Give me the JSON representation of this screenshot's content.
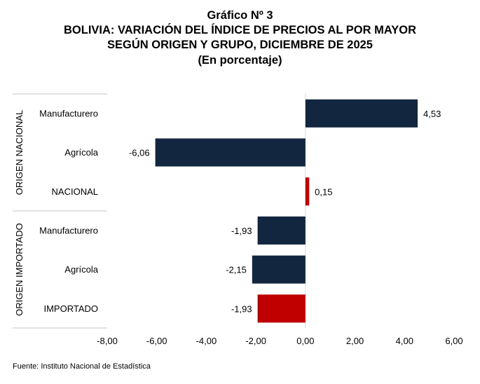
{
  "title": "Gráfico Nº 3",
  "subtitle1": "BOLIVIA: VARIACIÓN DEL ÍNDICE DE PRECIOS AL POR MAYOR",
  "subtitle2": "SEGÚN ORIGEN Y GRUPO, DICIEMBRE DE 2025",
  "subtitle3": "(En porcentaje)",
  "source": "Fuente: Instituto Nacional de Estadística",
  "chart_data": {
    "type": "bar",
    "orientation": "horizontal",
    "groups": [
      {
        "name": "ORIGEN NACIONAL",
        "categories": [
          "Manufacturero",
          "Agrícola",
          "NACIONAL"
        ],
        "values": [
          4.53,
          -6.06,
          0.15
        ],
        "labels": [
          "4,53",
          "-6,06",
          "0,15"
        ]
      },
      {
        "name": "ORIGEN IMPORTADO",
        "categories": [
          "Manufacturero",
          "Agrícola",
          "IMPORTADO"
        ],
        "values": [
          -1.93,
          -2.15,
          -1.93
        ],
        "labels": [
          "-1,93",
          "-2,15",
          "-1,93"
        ]
      }
    ],
    "highlight_totals": true,
    "xlim": [
      -8,
      6
    ],
    "xticks": [
      "-8,00",
      "-6,00",
      "-4,00",
      "-2,00",
      "0,00",
      "2,00",
      "4,00",
      "6,00"
    ],
    "colors": {
      "bar": "#12263f",
      "total": "#c00000"
    }
  }
}
